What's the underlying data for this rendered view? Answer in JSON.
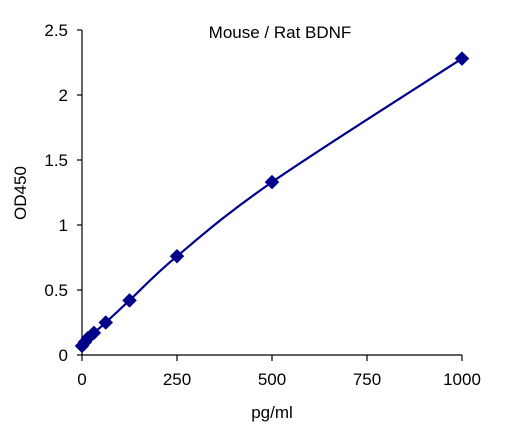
{
  "chart_data": {
    "type": "scatter",
    "title": "Mouse / Rat BDNF",
    "xlabel": "pg/ml",
    "ylabel": "OD450",
    "xlim": [
      0,
      1000
    ],
    "ylim": [
      0,
      2.5
    ],
    "x_ticks": [
      "0",
      "250",
      "500",
      "750",
      "1000"
    ],
    "y_ticks": [
      "0",
      "0.5",
      "1",
      "1.5",
      "2",
      "2.5"
    ],
    "grid": false,
    "legend": "none",
    "colors": {
      "series": "#00008B",
      "axis": "#000000"
    },
    "series": [
      {
        "marker": "diamond",
        "trendline": "smooth curve",
        "x": [
          0,
          7.8,
          15.6,
          31.25,
          62.5,
          125,
          250,
          500,
          1000
        ],
        "y": [
          0.07,
          0.1,
          0.13,
          0.17,
          0.25,
          0.42,
          0.76,
          1.33,
          2.28
        ]
      }
    ]
  }
}
